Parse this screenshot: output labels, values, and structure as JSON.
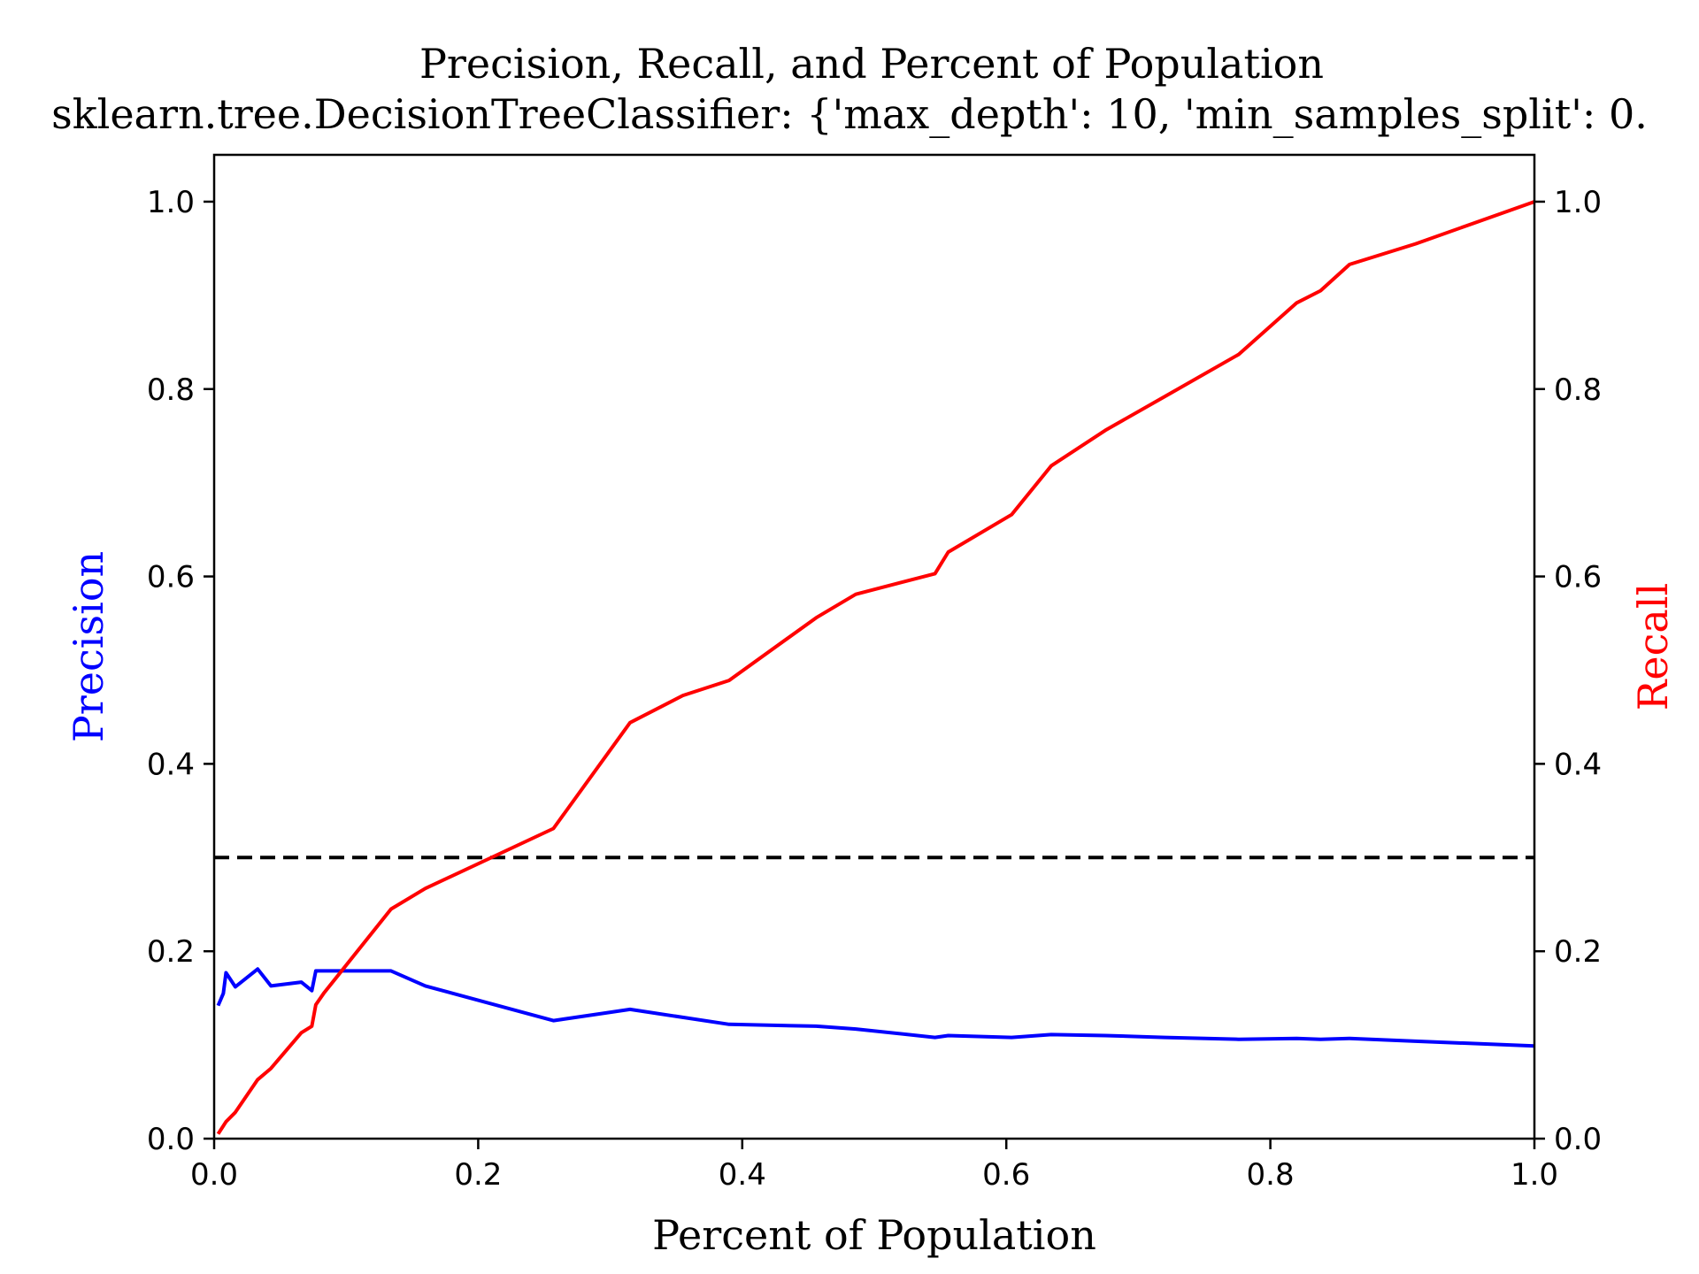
{
  "chart_data": {
    "type": "line",
    "title": "Precision, Recall, and Percent of Population",
    "subtitle": "sklearn.tree.DecisionTreeClassifier: {'max_depth': 10, 'min_samples_split': 0.",
    "xlabel": "Percent of Population",
    "ylabel_left": "Precision",
    "ylabel_right": "Recall",
    "xlim": [
      0.0,
      1.0
    ],
    "ylim_left": [
      0.0,
      1.05
    ],
    "ylim_right": [
      0.0,
      1.05
    ],
    "xticks": [
      "0.0",
      "0.2",
      "0.4",
      "0.6",
      "0.8",
      "1.0"
    ],
    "yticks_left": [
      "0.0",
      "0.2",
      "0.4",
      "0.6",
      "0.8",
      "1.0"
    ],
    "yticks_right": [
      "0.0",
      "0.2",
      "0.4",
      "0.6",
      "0.8",
      "1.0"
    ],
    "grid": false,
    "threshold_line": {
      "y": 0.3,
      "style": "dashed",
      "color": "#000000"
    },
    "series": [
      {
        "axis": "left",
        "color": "#0000ff",
        "x": [
          0.003,
          0.007,
          0.009,
          0.016,
          0.033,
          0.043,
          0.066,
          0.074,
          0.077,
          0.083,
          0.134,
          0.16,
          0.257,
          0.315,
          0.39,
          0.456,
          0.486,
          0.546,
          0.556,
          0.604,
          0.634,
          0.675,
          0.72,
          0.776,
          0.82,
          0.838,
          0.86,
          0.91,
          1.0
        ],
        "y": [
          0.142,
          0.155,
          0.177,
          0.162,
          0.181,
          0.163,
          0.167,
          0.158,
          0.179,
          0.179,
          0.179,
          0.163,
          0.126,
          0.138,
          0.122,
          0.12,
          0.117,
          0.108,
          0.11,
          0.108,
          0.111,
          0.11,
          0.108,
          0.106,
          0.107,
          0.106,
          0.107,
          0.104,
          0.099
        ]
      },
      {
        "axis": "right",
        "color": "#ff0000",
        "x": [
          0.003,
          0.009,
          0.016,
          0.033,
          0.043,
          0.066,
          0.074,
          0.077,
          0.083,
          0.134,
          0.16,
          0.257,
          0.315,
          0.355,
          0.39,
          0.456,
          0.486,
          0.546,
          0.556,
          0.604,
          0.634,
          0.675,
          0.72,
          0.776,
          0.82,
          0.838,
          0.86,
          0.91,
          1.0
        ],
        "y": [
          0.005,
          0.018,
          0.028,
          0.063,
          0.075,
          0.113,
          0.12,
          0.143,
          0.155,
          0.245,
          0.267,
          0.331,
          0.444,
          0.473,
          0.489,
          0.556,
          0.581,
          0.603,
          0.626,
          0.666,
          0.718,
          0.756,
          0.792,
          0.837,
          0.892,
          0.905,
          0.933,
          0.955,
          1.0
        ]
      }
    ]
  }
}
